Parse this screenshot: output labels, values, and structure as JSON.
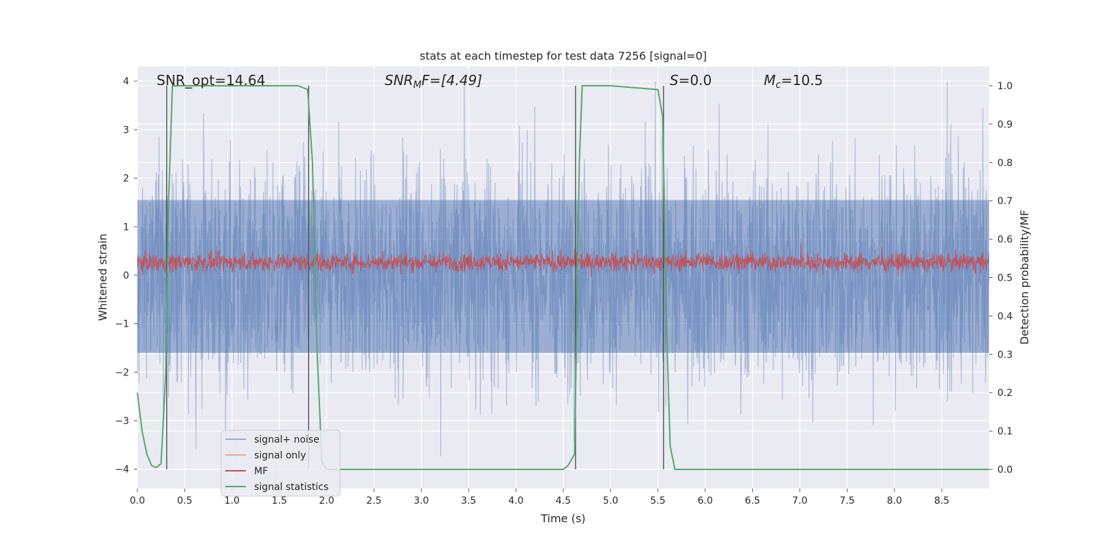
{
  "chart_data": {
    "type": "line",
    "title": "stats at each timestep for test data 7256 [signal=0]",
    "xlabel": "Time (s)",
    "ylabel": "Whitened strain",
    "y2label": "Detection probability/MF",
    "xlim": [
      0.0,
      9.0
    ],
    "ylim": [
      -4.4,
      4.3
    ],
    "y2lim": [
      -0.05,
      1.05
    ],
    "x_ticks": [
      "0.0",
      "0.5",
      "1.0",
      "1.5",
      "2.0",
      "2.5",
      "3.0",
      "3.5",
      "4.0",
      "4.5",
      "5.0",
      "5.5",
      "6.0",
      "6.5",
      "7.0",
      "7.5",
      "8.0",
      "8.5"
    ],
    "y_ticks": [
      "4",
      "3",
      "2",
      "1",
      "0",
      "−1",
      "−2",
      "−3",
      "−4"
    ],
    "y2_ticks": [
      "1.0",
      "0.9",
      "0.8",
      "0.7",
      "0.6",
      "0.5",
      "0.4",
      "0.3",
      "0.2",
      "0.1",
      "0.0"
    ],
    "grid": true,
    "legend_position": "lower-left",
    "annotations": {
      "snr_opt": "SNR_opt=14.64",
      "snr_mf_label": "SNR",
      "snr_mf_sub": "M",
      "snr_mf_tail": "F=[4.49]",
      "s_label": "S",
      "s_value": "=0.0",
      "mc_label": "M",
      "mc_sub": "c",
      "mc_value": "=10.5"
    },
    "series": [
      {
        "name": "signal+ noise",
        "color": "#4c72b0",
        "axis": "left",
        "band_low": -1.6,
        "band_high": 1.55,
        "peak_max": 4.0,
        "peak_min": -4.0
      },
      {
        "name": "signal only",
        "color": "#dd8452",
        "axis": "left",
        "values": []
      },
      {
        "name": "MF",
        "color": "#c44e52",
        "axis": "right",
        "band_low": 0.51,
        "band_high": 0.57,
        "peak_max": 0.59
      },
      {
        "name": "signal statistics",
        "color": "#55a868",
        "axis": "right",
        "x": [
          0.0,
          0.05,
          0.1,
          0.15,
          0.2,
          0.25,
          0.3,
          0.33,
          0.37,
          0.5,
          1.0,
          1.5,
          1.7,
          1.8,
          1.85,
          1.9,
          1.95,
          2.0,
          2.1,
          2.5,
          3.0,
          3.5,
          4.0,
          4.5,
          4.55,
          4.62,
          4.67,
          4.7,
          5.0,
          5.5,
          5.55,
          5.6,
          5.63,
          5.68,
          5.75,
          6.0,
          6.5,
          7.0,
          7.5,
          8.0,
          8.5,
          9.0
        ],
        "y": [
          0.2,
          0.1,
          0.04,
          0.01,
          0.005,
          0.015,
          0.25,
          0.7,
          1.0,
          1.0,
          1.0,
          1.0,
          1.0,
          0.99,
          0.8,
          0.3,
          0.02,
          0.0,
          0.0,
          0.0,
          0.0,
          0.0,
          0.0,
          0.0,
          0.01,
          0.04,
          0.8,
          1.0,
          1.0,
          0.99,
          0.92,
          0.3,
          0.06,
          0.0,
          0.0,
          0.0,
          0.0,
          0.0,
          0.0,
          0.0,
          0.0,
          0.0
        ]
      }
    ],
    "vlines_x": [
      0.31,
      1.81,
      4.63,
      5.56
    ]
  }
}
